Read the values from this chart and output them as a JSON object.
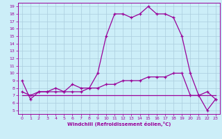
{
  "x": [
    0,
    1,
    2,
    3,
    4,
    5,
    6,
    7,
    8,
    9,
    10,
    11,
    12,
    13,
    14,
    15,
    16,
    17,
    18,
    19,
    20,
    21,
    22,
    23
  ],
  "line1": [
    9,
    6.5,
    7.5,
    7.5,
    8.0,
    7.5,
    8.5,
    8.0,
    8.0,
    10.0,
    15.0,
    18.0,
    18.0,
    17.5,
    18.0,
    19.0,
    18.0,
    18.0,
    17.5,
    15.0,
    10.0,
    7.0,
    7.5,
    6.5
  ],
  "line2": [
    7.5,
    7.0,
    7.5,
    7.5,
    7.5,
    7.5,
    7.5,
    7.5,
    8.0,
    8.0,
    8.5,
    8.5,
    9.0,
    9.0,
    9.0,
    9.5,
    9.5,
    9.5,
    10.0,
    10.0,
    7.0,
    7.0,
    5.0,
    6.5
  ],
  "line3": [
    7.0,
    7.0,
    7.0,
    7.0,
    7.0,
    7.0,
    7.0,
    7.0,
    7.0,
    7.0,
    7.0,
    7.0,
    7.0,
    7.0,
    7.0,
    7.0,
    7.0,
    7.0,
    7.0,
    7.0,
    7.0,
    7.0,
    7.0,
    7.0
  ],
  "line_color": "#990099",
  "bg_color": "#cceef8",
  "grid_color": "#aaccdd",
  "xlabel": "Windchill (Refroidissement éolien,°C)",
  "ylim": [
    5,
    19
  ],
  "xlim": [
    0,
    23
  ],
  "yticks": [
    5,
    6,
    7,
    8,
    9,
    10,
    11,
    12,
    13,
    14,
    15,
    16,
    17,
    18,
    19
  ],
  "xticks": [
    0,
    1,
    2,
    3,
    4,
    5,
    6,
    7,
    8,
    9,
    10,
    11,
    12,
    13,
    14,
    15,
    16,
    17,
    18,
    19,
    20,
    21,
    22,
    23
  ]
}
